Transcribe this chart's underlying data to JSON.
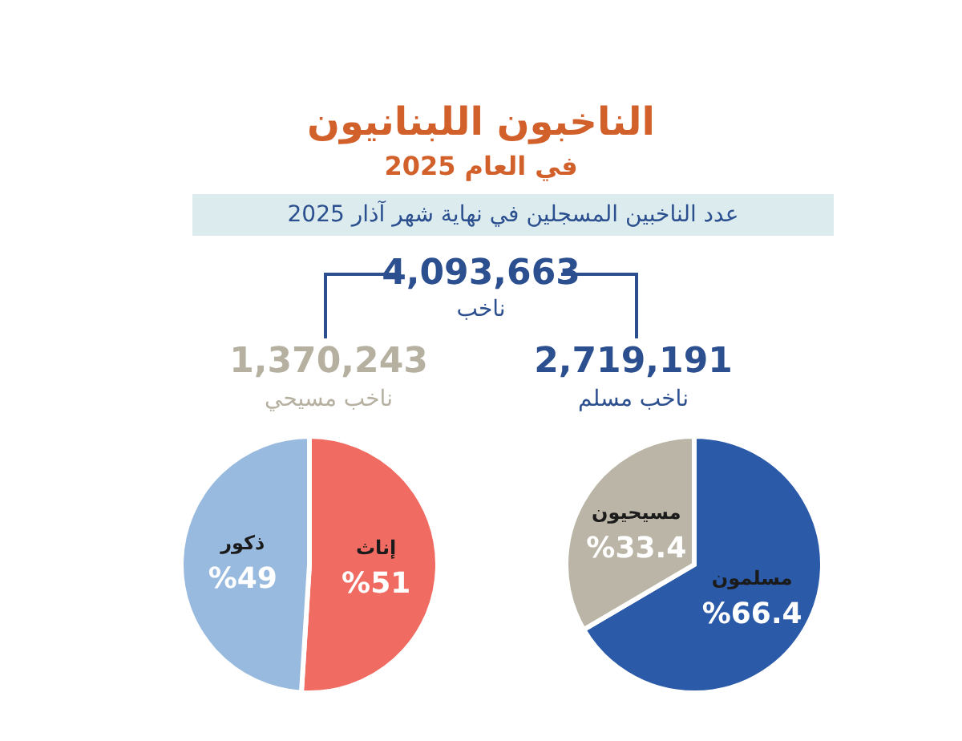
{
  "chart_data": [
    {
      "type": "pie",
      "title": "الناخبون اللبنانيون",
      "subtitle": "في العام 2025",
      "annotations": [
        "عدد الناخبين المسجلين في نهاية شهر آذار 2025",
        "4,093,663",
        "ناخب",
        "1,370,243",
        "ناخب مسيحي",
        "2,719,191",
        "ناخب مسلم"
      ],
      "categories": [
        "مسلمون",
        "مسيحيون"
      ],
      "values": [
        66.4,
        33.4
      ],
      "colors": [
        "#2a5aa8",
        "#bab5a6"
      ],
      "value_labels": [
        "%66.4",
        "%33.4"
      ]
    },
    {
      "type": "pie",
      "categories": [
        "إناث",
        "ذكور"
      ],
      "values": [
        51,
        49
      ],
      "colors": [
        "#f06c62",
        "#98badf"
      ],
      "value_labels": [
        "%51",
        "%49"
      ]
    }
  ]
}
